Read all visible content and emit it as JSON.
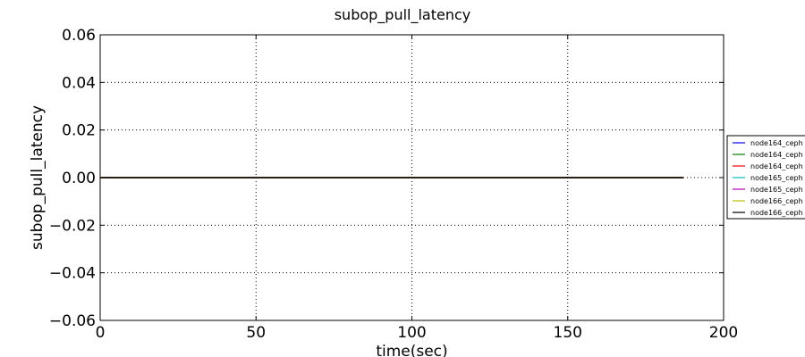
{
  "chart_data": {
    "type": "line",
    "title": "subop_pull_latency",
    "xlabel": "time(sec)",
    "ylabel": "subop_pull_latency",
    "xlim": [
      0,
      200
    ],
    "ylim": [
      -0.06,
      0.06
    ],
    "x_ticks": [
      0,
      50,
      100,
      150,
      200
    ],
    "x_tick_labels": [
      "0",
      "50",
      "100",
      "150",
      "200"
    ],
    "y_ticks": [
      0.06,
      0.04,
      0.02,
      0.0,
      -0.02,
      -0.04,
      -0.06
    ],
    "y_tick_labels": [
      "0.06",
      "0.04",
      "0.02",
      "0.00",
      "−0.02",
      "−0.04",
      "−0.06"
    ],
    "grid": true,
    "legend_position": "right",
    "series": [
      {
        "name": "node164_ceph",
        "color": "#0000ff",
        "x": [
          0,
          187
        ],
        "y": [
          0,
          0
        ]
      },
      {
        "name": "node164_ceph",
        "color": "#008000",
        "x": [
          0,
          187
        ],
        "y": [
          0,
          0
        ]
      },
      {
        "name": "node164_ceph",
        "color": "#ff0000",
        "x": [
          0,
          187
        ],
        "y": [
          0,
          0
        ]
      },
      {
        "name": "node165_ceph",
        "color": "#00bfbf",
        "x": [
          0,
          187
        ],
        "y": [
          0,
          0
        ]
      },
      {
        "name": "node165_ceph",
        "color": "#bf00bf",
        "x": [
          0,
          187
        ],
        "y": [
          0,
          0
        ]
      },
      {
        "name": "node166_ceph",
        "color": "#bfbf00",
        "x": [
          0,
          187
        ],
        "y": [
          0,
          0
        ]
      },
      {
        "name": "node166_ceph",
        "color": "#000000",
        "x": [
          0,
          187
        ],
        "y": [
          0,
          0
        ]
      }
    ]
  }
}
